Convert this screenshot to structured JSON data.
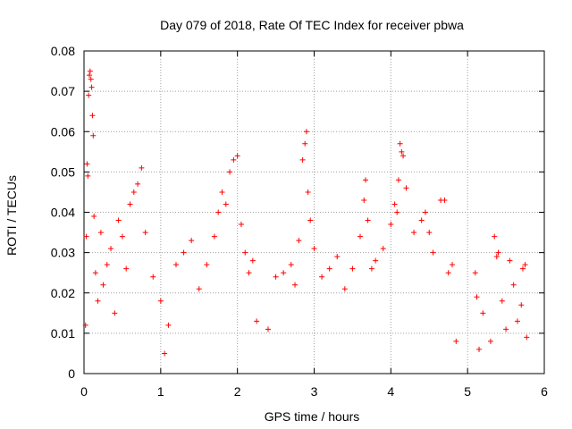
{
  "chart_data": {
    "type": "scatter",
    "title": "Day 079 of 2018, Rate Of TEC Index for receiver pbwa",
    "xlabel": "GPS time / hours",
    "ylabel": "ROTI / TECUs",
    "xlim": [
      0,
      6
    ],
    "ylim": [
      0,
      0.08
    ],
    "xticks": [
      0,
      1,
      2,
      3,
      4,
      5,
      6
    ],
    "xtick_labels": [
      "0",
      "1",
      "2",
      "3",
      "4",
      "5",
      "6"
    ],
    "yticks": [
      0,
      0.01,
      0.02,
      0.03,
      0.04,
      0.05,
      0.06,
      0.07,
      0.08
    ],
    "ytick_labels": [
      "0",
      "0.01",
      "0.02",
      "0.03",
      "0.04",
      "0.05",
      "0.06",
      "0.07",
      "0.08"
    ],
    "grid": true,
    "marker": "+",
    "marker_color": "#ff0000",
    "series": [
      {
        "name": "ROTI",
        "points": [
          [
            0.02,
            0.012
          ],
          [
            0.03,
            0.034
          ],
          [
            0.04,
            0.052
          ],
          [
            0.05,
            0.049
          ],
          [
            0.06,
            0.069
          ],
          [
            0.07,
            0.074
          ],
          [
            0.08,
            0.075
          ],
          [
            0.09,
            0.073
          ],
          [
            0.1,
            0.071
          ],
          [
            0.11,
            0.064
          ],
          [
            0.12,
            0.059
          ],
          [
            0.13,
            0.039
          ],
          [
            0.15,
            0.025
          ],
          [
            0.18,
            0.018
          ],
          [
            0.22,
            0.035
          ],
          [
            0.25,
            0.022
          ],
          [
            0.3,
            0.027
          ],
          [
            0.35,
            0.031
          ],
          [
            0.4,
            0.015
          ],
          [
            0.45,
            0.038
          ],
          [
            0.5,
            0.034
          ],
          [
            0.55,
            0.026
          ],
          [
            0.6,
            0.042
          ],
          [
            0.65,
            0.045
          ],
          [
            0.7,
            0.047
          ],
          [
            0.75,
            0.051
          ],
          [
            0.8,
            0.035
          ],
          [
            0.9,
            0.024
          ],
          [
            1.0,
            0.018
          ],
          [
            1.05,
            0.005
          ],
          [
            1.1,
            0.012
          ],
          [
            1.2,
            0.027
          ],
          [
            1.3,
            0.03
          ],
          [
            1.4,
            0.033
          ],
          [
            1.5,
            0.021
          ],
          [
            1.6,
            0.027
          ],
          [
            1.7,
            0.034
          ],
          [
            1.75,
            0.04
          ],
          [
            1.8,
            0.045
          ],
          [
            1.85,
            0.042
          ],
          [
            1.9,
            0.05
          ],
          [
            1.95,
            0.053
          ],
          [
            2.0,
            0.054
          ],
          [
            2.05,
            0.037
          ],
          [
            2.1,
            0.03
          ],
          [
            2.15,
            0.025
          ],
          [
            2.2,
            0.028
          ],
          [
            2.25,
            0.013
          ],
          [
            2.4,
            0.011
          ],
          [
            2.5,
            0.024
          ],
          [
            2.6,
            0.025
          ],
          [
            2.7,
            0.027
          ],
          [
            2.75,
            0.022
          ],
          [
            2.8,
            0.033
          ],
          [
            2.85,
            0.053
          ],
          [
            2.88,
            0.057
          ],
          [
            2.9,
            0.06
          ],
          [
            2.92,
            0.045
          ],
          [
            2.95,
            0.038
          ],
          [
            3.0,
            0.031
          ],
          [
            3.1,
            0.024
          ],
          [
            3.2,
            0.026
          ],
          [
            3.3,
            0.029
          ],
          [
            3.4,
            0.021
          ],
          [
            3.5,
            0.026
          ],
          [
            3.6,
            0.034
          ],
          [
            3.65,
            0.043
          ],
          [
            3.67,
            0.048
          ],
          [
            3.7,
            0.038
          ],
          [
            3.75,
            0.026
          ],
          [
            3.8,
            0.028
          ],
          [
            3.9,
            0.031
          ],
          [
            4.0,
            0.037
          ],
          [
            4.05,
            0.042
          ],
          [
            4.08,
            0.04
          ],
          [
            4.1,
            0.048
          ],
          [
            4.12,
            0.057
          ],
          [
            4.14,
            0.055
          ],
          [
            4.16,
            0.054
          ],
          [
            4.2,
            0.046
          ],
          [
            4.3,
            0.035
          ],
          [
            4.4,
            0.038
          ],
          [
            4.45,
            0.04
          ],
          [
            4.5,
            0.035
          ],
          [
            4.55,
            0.03
          ],
          [
            4.65,
            0.043
          ],
          [
            4.7,
            0.043
          ],
          [
            4.75,
            0.025
          ],
          [
            4.8,
            0.027
          ],
          [
            4.85,
            0.008
          ],
          [
            5.1,
            0.025
          ],
          [
            5.12,
            0.019
          ],
          [
            5.15,
            0.006
          ],
          [
            5.2,
            0.015
          ],
          [
            5.3,
            0.008
          ],
          [
            5.35,
            0.034
          ],
          [
            5.38,
            0.029
          ],
          [
            5.4,
            0.03
          ],
          [
            5.45,
            0.018
          ],
          [
            5.5,
            0.011
          ],
          [
            5.55,
            0.028
          ],
          [
            5.6,
            0.022
          ],
          [
            5.65,
            0.013
          ],
          [
            5.7,
            0.017
          ],
          [
            5.72,
            0.026
          ],
          [
            5.75,
            0.027
          ],
          [
            5.77,
            0.009
          ]
        ]
      }
    ]
  }
}
